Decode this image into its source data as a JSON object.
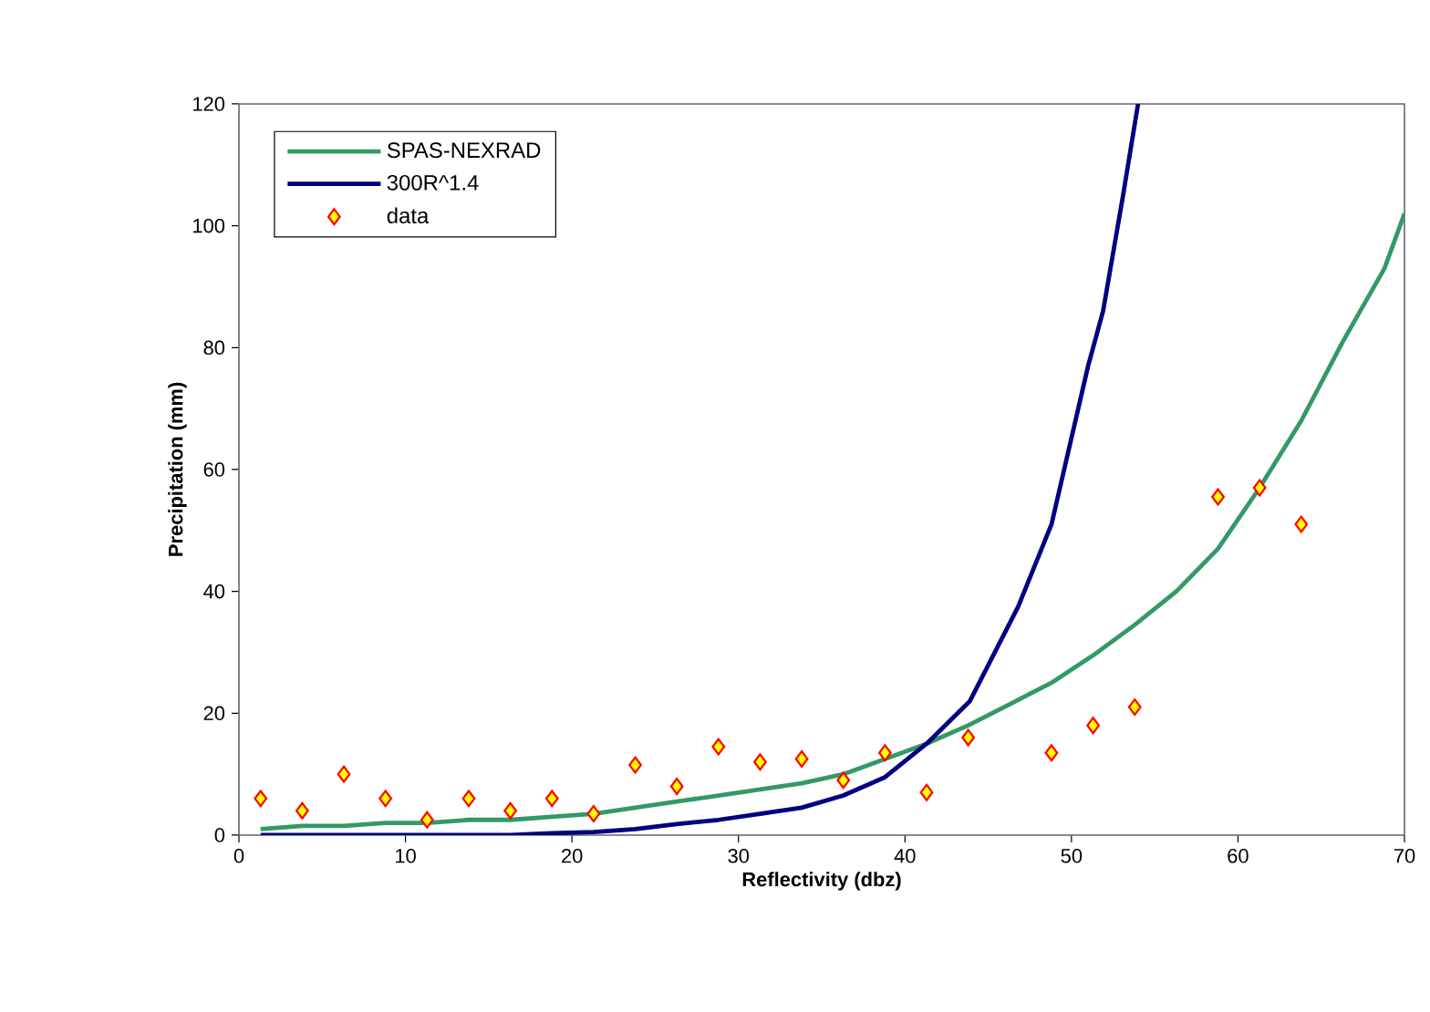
{
  "chart_data": {
    "type": "line",
    "xlabel": "Reflectivity (dbz)",
    "ylabel": "Precipitation (mm)",
    "xlim": [
      0,
      70
    ],
    "ylim": [
      0,
      120
    ],
    "xticks": [
      0,
      10,
      20,
      30,
      40,
      50,
      60,
      70
    ],
    "yticks": [
      0,
      20,
      40,
      60,
      80,
      100,
      120
    ],
    "grid": false,
    "legend": "top left",
    "series": [
      {
        "name": "SPAS-NEXRAD",
        "color": "#339966",
        "marker": "none",
        "x": [
          1.3,
          3.8,
          6.3,
          8.8,
          11.3,
          13.8,
          16.3,
          18.8,
          21.3,
          23.8,
          26.3,
          28.8,
          31.3,
          33.8,
          36.3,
          38.8,
          41.3,
          43.8,
          46.3,
          48.8,
          51.3,
          53.8,
          56.3,
          58.8,
          61.3,
          63.8,
          66.3,
          68.8,
          70
        ],
        "values": [
          1,
          1.5,
          1.5,
          2,
          2,
          2.5,
          2.5,
          3,
          3.5,
          4.5,
          5.5,
          6.5,
          7.5,
          8.5,
          10,
          12.5,
          15,
          18,
          21.5,
          25,
          29.5,
          34.5,
          40,
          47,
          57,
          68,
          81,
          93,
          102
        ]
      },
      {
        "name": "300R^1.4",
        "color": "#000080",
        "marker": "none",
        "x": [
          1.3,
          3.8,
          6.3,
          8.8,
          11.3,
          13.8,
          16.3,
          18.8,
          21.3,
          23.8,
          26.3,
          28.8,
          31.3,
          33.8,
          36.3,
          38.8,
          41.3,
          43.9,
          46.8,
          48.8,
          51,
          51.9,
          53.1,
          54
        ],
        "values": [
          0,
          0,
          0,
          0,
          0,
          0,
          0,
          0.3,
          0.5,
          1,
          1.8,
          2.5,
          3.5,
          4.5,
          6.5,
          9.5,
          15,
          22,
          37.5,
          51,
          77,
          86,
          105,
          120
        ]
      },
      {
        "name": "data",
        "type": "scatter",
        "color": "#ffff00",
        "marker": "diamond",
        "x": [
          1.3,
          3.8,
          6.3,
          8.8,
          11.3,
          13.8,
          16.3,
          18.8,
          21.3,
          23.8,
          26.3,
          28.8,
          31.3,
          33.8,
          36.3,
          38.8,
          41.3,
          43.8,
          48.8,
          51.3,
          53.8,
          58.8,
          61.3,
          63.8
        ],
        "values": [
          6,
          4,
          10,
          6,
          2.5,
          6,
          4,
          6,
          3.5,
          11.5,
          8,
          14.5,
          12,
          12.5,
          9,
          13.5,
          7,
          16,
          13.5,
          18,
          21,
          55.5,
          57,
          51
        ]
      }
    ]
  }
}
